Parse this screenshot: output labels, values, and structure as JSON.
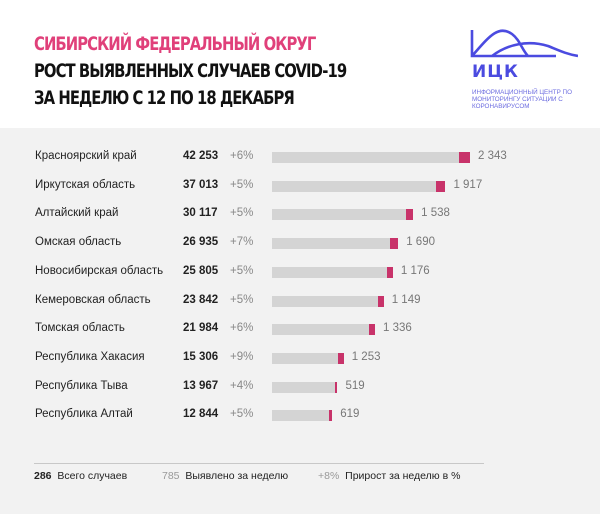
{
  "header": {
    "region": "СИБИРСКИЙ ФЕДЕРАЛЬНЫЙ ОКРУГ",
    "title_line1": "РОСТ ВЫЯВЛЕННЫХ СЛУЧАЕВ COVID-19",
    "title_line2": "ЗА НЕДЕЛЮ С 12 ПО 18 ДЕКАБРЯ"
  },
  "logo": {
    "name": "ИЦК",
    "subtitle": "Информационный центр по мониторингу ситуации с коронавирусом",
    "color": "#4b4be0"
  },
  "colors": {
    "accent": "#e0407a",
    "weekly_bar": "#c8336a",
    "total_bar": "#d4d4d4",
    "background": "#f2f2f2"
  },
  "chart_data": {
    "type": "bar",
    "orientation": "horizontal",
    "stacked": true,
    "categories": [
      "Красноярский край",
      "Иркутская область",
      "Алтайский край",
      "Омская область",
      "Новосибирская область",
      "Кемеровская область",
      "Томская область",
      "Республика Хакасия",
      "Республика Тыва",
      "Республика Алтай"
    ],
    "totals": [
      42253,
      37013,
      30117,
      26935,
      25805,
      23842,
      21984,
      15306,
      13967,
      12844
    ],
    "totals_labels": [
      "42 253",
      "37 013",
      "30 117",
      "26 935",
      "25 805",
      "23 842",
      "21 984",
      "15 306",
      "13 967",
      "12 844"
    ],
    "growth_pct": [
      "+6%",
      "+5%",
      "+5%",
      "+7%",
      "+5%",
      "+5%",
      "+6%",
      "+9%",
      "+4%",
      "+5%"
    ],
    "weekly": [
      2343,
      1917,
      1538,
      1690,
      1176,
      1149,
      1336,
      1253,
      519,
      619
    ],
    "weekly_labels": [
      "2 343",
      "1 917",
      "1 538",
      "1 690",
      "1 176",
      "1 149",
      "1 336",
      "1 253",
      "519",
      "619"
    ]
  },
  "legend": {
    "total_sample": "286",
    "total_label": "Всего случаев",
    "weekly_sample": "785",
    "weekly_label": "Выявлено за неделю",
    "growth_sample": "+8%",
    "growth_label": "Прирост за неделю в %"
  }
}
